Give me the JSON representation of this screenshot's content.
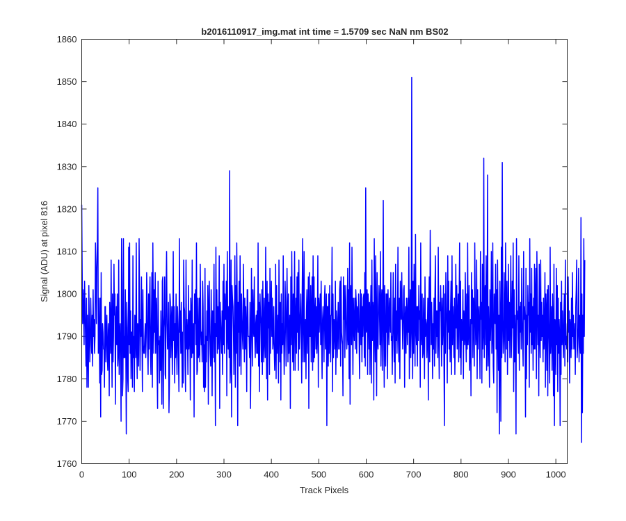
{
  "chart_data": {
    "type": "line",
    "title": "b2016110917_img.mat int time = 1.5709 sec  NaN nm BS02",
    "xlabel": "Track Pixels",
    "ylabel": "Signal (ADU) at pixel 816",
    "xlim": [
      0,
      1024
    ],
    "ylim": [
      1760,
      1860
    ],
    "xticks": [
      0,
      100,
      200,
      300,
      400,
      500,
      600,
      700,
      800,
      900,
      1000
    ],
    "yticks": [
      1760,
      1770,
      1780,
      1790,
      1800,
      1810,
      1820,
      1830,
      1840,
      1850,
      1860
    ],
    "grid": false,
    "legend": "none",
    "series": [
      {
        "color": "#0000ff",
        "x_start": 0,
        "x_step": 1,
        "values": [
          1821,
          1805,
          1793,
          1801,
          1796,
          1788,
          1803,
          1797,
          1790,
          1783,
          1799,
          1778,
          1795,
          1786,
          1778,
          1802,
          1793,
          1784,
          1788,
          1799,
          1792,
          1786,
          1795,
          1783,
          1801,
          1790,
          1794,
          1786,
          1790,
          1812,
          1805,
          1793,
          1806,
          1812,
          1825,
          1786,
          1799,
          1791,
          1779,
          1799,
          1771,
          1805,
          1781,
          1782,
          1793,
          1791,
          1787,
          1787,
          1778,
          1797,
          1797,
          1784,
          1792,
          1795,
          1785,
          1782,
          1793,
          1790,
          1776,
          1798,
          1793,
          1786,
          1808,
          1790,
          1778,
          1800,
          1784,
          1790,
          1807,
          1795,
          1800,
          1774,
          1793,
          1797,
          1788,
          1800,
          1783,
          1786,
          1808,
          1781,
          1790,
          1793,
          1785,
          1770,
          1813,
          1803,
          1776,
          1780,
          1813,
          1785,
          1790,
          1785,
          1801,
          1786,
          1767,
          1798,
          1792,
          1780,
          1777,
          1811,
          1788,
          1812,
          1786,
          1796,
          1780,
          1791,
          1791,
          1778,
          1809,
          1785,
          1790,
          1777,
          1795,
          1794,
          1785,
          1812,
          1788,
          1780,
          1793,
          1790,
          1783,
          1813,
          1800,
          1782,
          1794,
          1790,
          1804,
          1791,
          1777,
          1801,
          1788,
          1786,
          1786,
          1790,
          1793,
          1785,
          1790,
          1805,
          1797,
          1787,
          1781,
          1800,
          1787,
          1798,
          1804,
          1786,
          1781,
          1794,
          1805,
          1778,
          1812,
          1797,
          1786,
          1801,
          1791,
          1805,
          1786,
          1795,
          1799,
          1782,
          1773,
          1803,
          1788,
          1789,
          1779,
          1790,
          1782,
          1796,
          1786,
          1774,
          1803,
          1804,
          1773,
          1792,
          1795,
          1804,
          1781,
          1780,
          1801,
          1810,
          1793,
          1787,
          1791,
          1798,
          1772,
          1779,
          1800,
          1798,
          1785,
          1793,
          1797,
          1781,
          1788,
          1810,
          1789,
          1797,
          1779,
          1793,
          1785,
          1800,
          1788,
          1781,
          1797,
          1793,
          1785,
          1777,
          1813,
          1791,
          1796,
          1786,
          1798,
          1789,
          1778,
          1791,
          1779,
          1808,
          1797,
          1796,
          1783,
          1777,
          1808,
          1787,
          1794,
          1790,
          1781,
          1802,
          1787,
          1792,
          1796,
          1775,
          1799,
          1794,
          1785,
          1808,
          1786,
          1787,
          1793,
          1771,
          1800,
          1793,
          1801,
          1788,
          1812,
          1781,
          1782,
          1799,
          1785,
          1786,
          1799,
          1784,
          1807,
          1792,
          1788,
          1791,
          1784,
          1803,
          1797,
          1778,
          1788,
          1777,
          1806,
          1778,
          1790,
          1784,
          1796,
          1789,
          1802,
          1774,
          1796,
          1803,
          1791,
          1786,
          1783,
          1801,
          1790,
          1776,
          1796,
          1785,
          1793,
          1807,
          1784,
          1793,
          1769,
          1811,
          1790,
          1801,
          1786,
          1797,
          1787,
          1791,
          1809,
          1773,
          1798,
          1794,
          1789,
          1786,
          1796,
          1781,
          1803,
          1788,
          1807,
          1786,
          1800,
          1794,
          1794,
          1803,
          1776,
          1810,
          1791,
          1787,
          1797,
          1785,
          1829,
          1779,
          1784,
          1808,
          1771,
          1802,
          1799,
          1797,
          1791,
          1781,
          1793,
          1809,
          1778,
          1802,
          1786,
          1812,
          1797,
          1769,
          1798,
          1791,
          1803,
          1783,
          1809,
          1792,
          1781,
          1800,
          1794,
          1790,
          1787,
          1807,
          1795,
          1784,
          1799,
          1787,
          1797,
          1792,
          1777,
          1801,
          1801,
          1790,
          1790,
          1790,
          1785,
          1798,
          1773,
          1788,
          1806,
          1793,
          1783,
          1801,
          1792,
          1790,
          1804,
          1790,
          1785,
          1793,
          1795,
          1786,
          1796,
          1786,
          1812,
          1783,
          1798,
          1777,
          1800,
          1795,
          1793,
          1784,
          1801,
          1781,
          1803,
          1790,
          1784,
          1799,
          1790,
          1785,
          1811,
          1793,
          1780,
          1803,
          1775,
          1800,
          1792,
          1798,
          1781,
          1806,
          1786,
          1796,
          1803,
          1790,
          1799,
          1787,
          1789,
          1797,
          1787,
          1782,
          1786,
          1807,
          1780,
          1802,
          1786,
          1790,
          1795,
          1779,
          1808,
          1793,
          1784,
          1798,
          1775,
          1800,
          1786,
          1793,
          1788,
          1809,
          1791,
          1781,
          1788,
          1803,
          1796,
          1783,
          1792,
          1806,
          1795,
          1784,
          1800,
          1786,
          1791,
          1795,
          1773,
          1804,
          1788,
          1810,
          1793,
          1784,
          1800,
          1782,
          1797,
          1810,
          1782,
          1793,
          1799,
          1786,
          1804,
          1791,
          1805,
          1782,
          1808,
          1787,
          1791,
          1796,
          1800,
          1789,
          1779,
          1800,
          1813,
          1784,
          1796,
          1810,
          1784,
          1790,
          1794,
          1780,
          1796,
          1801,
          1786,
          1794,
          1804,
          1773,
          1805,
          1790,
          1790,
          1802,
          1784,
          1796,
          1804,
          1782,
          1809,
          1784,
          1804,
          1785,
          1795,
          1799,
          1787,
          1797,
          1786,
          1791,
          1809,
          1778,
          1799,
          1791,
          1796,
          1800,
          1788,
          1803,
          1789,
          1780,
          1794,
          1797,
          1792,
          1784,
          1799,
          1802,
          1787,
          1794,
          1800,
          1769,
          1797,
          1797,
          1783,
          1800,
          1786,
          1802,
          1791,
          1784,
          1795,
          1795,
          1811,
          1777,
          1800,
          1785,
          1794,
          1792,
          1787,
          1803,
          1781,
          1796,
          1793,
          1785,
          1793,
          1798,
          1787,
          1787,
          1801,
          1803,
          1783,
          1804,
          1791,
          1789,
          1788,
          1776,
          1804,
          1794,
          1802,
          1785,
          1796,
          1802,
          1793,
          1787,
          1790,
          1806,
          1788,
          1801,
          1780,
          1812,
          1774,
          1802,
          1799,
          1788,
          1811,
          1795,
          1781,
          1799,
          1793,
          1789,
          1799,
          1787,
          1801,
          1798,
          1786,
          1797,
          1796,
          1791,
          1800,
          1790,
          1780,
          1796,
          1801,
          1788,
          1800,
          1784,
          1797,
          1790,
          1799,
          1800,
          1785,
          1805,
          1783,
          1825,
          1791,
          1792,
          1801,
          1781,
          1800,
          1797,
          1787,
          1798,
          1781,
          1795,
          1802,
          1779,
          1808,
          1789,
          1798,
          1796,
          1775,
          1813,
          1793,
          1784,
          1809,
          1792,
          1776,
          1805,
          1789,
          1787,
          1797,
          1802,
          1796,
          1788,
          1810,
          1783,
          1798,
          1801,
          1782,
          1794,
          1822,
          1791,
          1778,
          1802,
          1788,
          1783,
          1800,
          1791,
          1800,
          1780,
          1801,
          1794,
          1788,
          1799,
          1795,
          1791,
          1805,
          1789,
          1790,
          1781,
          1793,
          1805,
          1791,
          1784,
          1799,
          1779,
          1807,
          1789,
          1796,
          1786,
          1793,
          1811,
          1789,
          1784,
          1799,
          1780,
          1803,
          1797,
          1794,
          1805,
          1795,
          1787,
          1792,
          1801,
          1802,
          1778,
          1794,
          1797,
          1786,
          1799,
          1795,
          1788,
          1799,
          1791,
          1811,
          1780,
          1795,
          1801,
          1785,
          1792,
          1851,
          1791,
          1780,
          1803,
          1786,
          1807,
          1798,
          1783,
          1814,
          1792,
          1788,
          1797,
          1783,
          1797,
          1789,
          1802,
          1794,
          1796,
          1778,
          1812,
          1791,
          1788,
          1800,
          1785,
          1786,
          1799,
          1791,
          1780,
          1804,
          1790,
          1794,
          1793,
          1785,
          1791,
          1799,
          1775,
          1796,
          1804,
          1784,
          1815,
          1801,
          1788,
          1798,
          1792,
          1780,
          1793,
          1787,
          1799,
          1783,
          1800,
          1809,
          1786,
          1796,
          1790,
          1796,
          1785,
          1811,
          1791,
          1780,
          1798,
          1796,
          1802,
          1794,
          1783,
          1799,
          1788,
          1793,
          1802,
          1784,
          1769,
          1800,
          1786,
          1805,
          1797,
          1792,
          1779,
          1809,
          1791,
          1803,
          1787,
          1796,
          1784,
          1797,
          1803,
          1781,
          1809,
          1788,
          1797,
          1793,
          1785,
          1799,
          1781,
          1790,
          1807,
          1792,
          1802,
          1787,
          1794,
          1800,
          1784,
          1798,
          1812,
          1785,
          1803,
          1781,
          1794,
          1789,
          1790,
          1801,
          1780,
          1796,
          1793,
          1788,
          1805,
          1791,
          1784,
          1800,
          1787,
          1812,
          1788,
          1792,
          1802,
          1782,
          1787,
          1794,
          1776,
          1805,
          1793,
          1801,
          1785,
          1799,
          1796,
          1783,
          1812,
          1797,
          1788,
          1791,
          1808,
          1780,
          1801,
          1787,
          1795,
          1797,
          1790,
          1780,
          1810,
          1794,
          1798,
          1779,
          1807,
          1787,
          1791,
          1832,
          1785,
          1798,
          1802,
          1788,
          1809,
          1782,
          1790,
          1828,
          1783,
          1797,
          1791,
          1778,
          1801,
          1789,
          1795,
          1810,
          1786,
          1790,
          1812,
          1783,
          1779,
          1800,
          1796,
          1793,
          1807,
          1787,
          1801,
          1772,
          1808,
          1794,
          1782,
          1795,
          1767,
          1803,
          1792,
          1770,
          1811,
          1785,
          1831,
          1794,
          1786,
          1789,
          1805,
          1792,
          1784,
          1812,
          1797,
          1787,
          1803,
          1781,
          1792,
          1807,
          1789,
          1798,
          1785,
          1794,
          1809,
          1785,
          1791,
          1803,
          1792,
          1812,
          1777,
          1801,
          1784,
          1795,
          1788,
          1767,
          1813,
          1794,
          1796,
          1790,
          1786,
          1809,
          1782,
          1797,
          1791,
          1798,
          1787,
          1806,
          1794,
          1789,
          1783,
          1810,
          1794,
          1797,
          1793,
          1771,
          1806,
          1780,
          1795,
          1788,
          1802,
          1795,
          1798,
          1778,
          1813,
          1791,
          1800,
          1786,
          1806,
          1788,
          1797,
          1782,
          1799,
          1787,
          1807,
          1787,
          1799,
          1806,
          1780,
          1810,
          1799,
          1788,
          1795,
          1776,
          1807,
          1792,
          1785,
          1808,
          1789,
          1798,
          1790,
          1795,
          1784,
          1799,
          1787,
          1790,
          1805,
          1778,
          1800,
          1796,
          1782,
          1801,
          1776,
          1802,
          1794,
          1788,
          1779,
          1811,
          1786,
          1790,
          1797,
          1782,
          1800,
          1792,
          1776,
          1807,
          1769,
          1794,
          1793,
          1781,
          1806,
          1788,
          1802,
          1777,
          1799,
          1786,
          1794,
          1790,
          1769,
          1798,
          1781,
          1803,
          1788,
          1796,
          1790,
          1785,
          1795,
          1800,
          1783,
          1808,
          1788,
          1790,
          1787,
          1793,
          1784,
          1804,
          1791,
          1796,
          1779,
          1794,
          1792,
          1785,
          1799,
          1787,
          1805,
          1790,
          1795,
          1787,
          1789,
          1793,
          1781,
          1797,
          1801,
          1808,
          1785,
          1788,
          1792,
          1806,
          1784,
          1795,
          1789,
          1786,
          1818,
          1765,
          1800,
          1772,
          1795,
          1786,
          1813,
          1790,
          1808
        ]
      }
    ]
  }
}
